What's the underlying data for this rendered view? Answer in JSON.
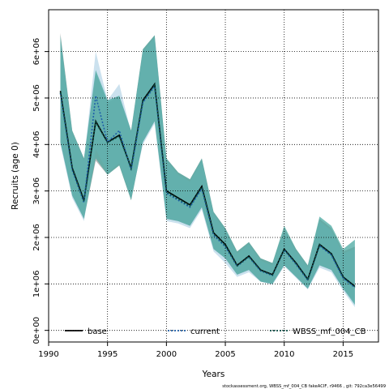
{
  "chart_data": {
    "type": "line",
    "title": "",
    "xlabel": "Years",
    "ylabel": "Recruits (age 0)",
    "xlim": [
      1990,
      2018
    ],
    "ylim": [
      -250000,
      6900000
    ],
    "xticks": [
      1990,
      1995,
      2000,
      2005,
      2010,
      2015
    ],
    "xtick_labels": [
      "1990",
      "1995",
      "2000",
      "2005",
      "2010",
      "2015"
    ],
    "yticks": [
      0,
      1000000,
      2000000,
      3000000,
      4000000,
      5000000,
      6000000
    ],
    "ytick_labels": [
      "0e+00",
      "1e+06",
      "2e+06",
      "3e+06",
      "4e+06",
      "5e+06",
      "6e+06"
    ],
    "grid": true,
    "legend_position": "bottom",
    "x": [
      1991,
      1992,
      1993,
      1994,
      1995,
      1996,
      1997,
      1998,
      1999,
      2000,
      2001,
      2002,
      2003,
      2004,
      2005,
      2006,
      2007,
      2008,
      2009,
      2010,
      2011,
      2012,
      2013,
      2014,
      2015,
      2016
    ],
    "series": [
      {
        "name": "base",
        "color": "#000000",
        "dash": "solid",
        "values": [
          5150000,
          3500000,
          2800000,
          4500000,
          4050000,
          4200000,
          3500000,
          4950000,
          5300000,
          3000000,
          2850000,
          2700000,
          3100000,
          2100000,
          1850000,
          1400000,
          1600000,
          1300000,
          1200000,
          1750000,
          1450000,
          1100000,
          1850000,
          1650000,
          1150000,
          950000
        ],
        "lower": [
          4050000,
          2900000,
          2400000,
          3650000,
          3350000,
          3550000,
          2800000,
          4050000,
          4500000,
          2400000,
          2350000,
          2250000,
          2650000,
          1750000,
          1550000,
          1200000,
          1300000,
          1050000,
          1000000,
          1400000,
          1150000,
          900000,
          1400000,
          1300000,
          900000,
          600000
        ],
        "upper": [
          6400000,
          4300000,
          3700000,
          5550000,
          4900000,
          5050000,
          4300000,
          6050000,
          6350000,
          3700000,
          3400000,
          3250000,
          3700000,
          2550000,
          2200000,
          1700000,
          1900000,
          1550000,
          1450000,
          2200000,
          1750000,
          1400000,
          2400000,
          2200000,
          1700000,
          1800000
        ],
        "band_color": "#8b8b8b"
      },
      {
        "name": "current",
        "color": "#1f5fa8",
        "dash": "dotted",
        "values": [
          5100000,
          3450000,
          2750000,
          5050000,
          4050000,
          4300000,
          3450000,
          4900000,
          5250000,
          2950000,
          2800000,
          2650000,
          3050000,
          2050000,
          1800000,
          1380000,
          1580000,
          1280000,
          1180000,
          1730000,
          1420000,
          1080000,
          1820000,
          1620000,
          1120000,
          920000
        ],
        "lower": [
          4000000,
          2850000,
          2350000,
          3900000,
          3400000,
          3600000,
          2850000,
          4000000,
          4450000,
          2350000,
          2300000,
          2200000,
          2600000,
          1700000,
          1450000,
          1150000,
          1250000,
          1050000,
          980000,
          1380000,
          1130000,
          880000,
          1350000,
          1250000,
          850000,
          500000
        ],
        "upper": [
          6300000,
          4250000,
          3650000,
          6000000,
          4950000,
          5300000,
          4250000,
          6000000,
          6300000,
          3650000,
          3350000,
          3200000,
          3650000,
          2500000,
          2150000,
          1650000,
          1850000,
          1500000,
          1400000,
          2150000,
          1700000,
          1350000,
          2350000,
          2150000,
          1650000,
          1750000
        ],
        "band_color": "#a9cde3"
      },
      {
        "name": "WBSS_mf_004_CB",
        "color": "#0a4f45",
        "dash": "dotted",
        "values": [
          5120000,
          3480000,
          2780000,
          4480000,
          4040000,
          4180000,
          3480000,
          4930000,
          5280000,
          2980000,
          2830000,
          2680000,
          3080000,
          2080000,
          1830000,
          1390000,
          1590000,
          1290000,
          1190000,
          1740000,
          1440000,
          1090000,
          1840000,
          1640000,
          1140000,
          940000
        ],
        "lower": [
          4050000,
          2900000,
          2400000,
          3700000,
          3350000,
          3550000,
          2800000,
          4050000,
          4500000,
          2400000,
          2350000,
          2250000,
          2650000,
          1750000,
          1550000,
          1200000,
          1300000,
          1050000,
          1000000,
          1400000,
          1150000,
          900000,
          1400000,
          1300000,
          900000,
          550000
        ],
        "upper": [
          6350000,
          4300000,
          3700000,
          5600000,
          4950000,
          5050000,
          4300000,
          6050000,
          6350000,
          3700000,
          3400000,
          3250000,
          3700000,
          2550000,
          2200000,
          1700000,
          1900000,
          1550000,
          1450000,
          2250000,
          1750000,
          1400000,
          2450000,
          2250000,
          1750000,
          1950000
        ],
        "band_color": "#4aa8a0"
      }
    ],
    "footnote": "stockassessment.org, WBSS_mf_004_CB fakeACIF, r9466 , git: 792ca3e56499"
  }
}
